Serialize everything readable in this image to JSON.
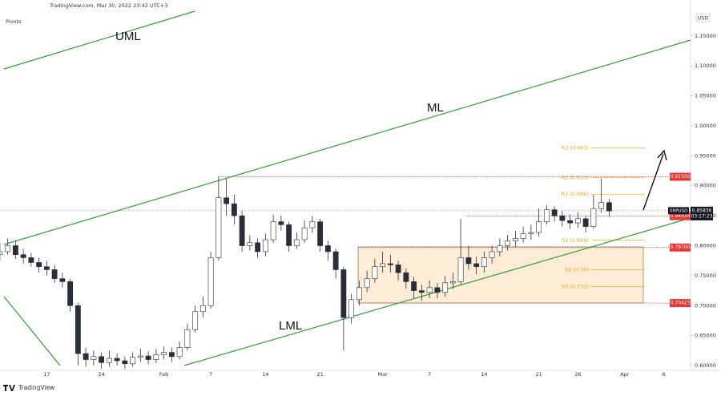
{
  "chart_data": {
    "type": "candlestick",
    "header": "TradingView.com, Mar 30, 2022 23:42 UTC+3",
    "indicator": "Pivots",
    "currency": "USD",
    "symbol": "XRPUSD",
    "countdown": "03:17:23",
    "logo": "TradingView",
    "annotations": [
      "UML",
      "ML",
      "LML"
    ],
    "categories": [
      null,
      null,
      null,
      null,
      null,
      null,
      "17",
      null,
      null,
      null,
      null,
      null,
      null,
      "24",
      null,
      null,
      null,
      null,
      null,
      null,
      null,
      "Feb",
      null,
      null,
      null,
      null,
      null,
      "7",
      null,
      null,
      null,
      null,
      null,
      null,
      "14",
      null,
      null,
      null,
      null,
      null,
      null,
      "21",
      null,
      null,
      null,
      null,
      null,
      null,
      null,
      "Mar",
      null,
      null,
      null,
      null,
      null,
      "7",
      null,
      null,
      null,
      null,
      null,
      null,
      "14",
      null,
      null,
      null,
      null,
      null,
      null,
      "21",
      null,
      null,
      null,
      null,
      "26",
      null,
      null,
      null,
      null,
      null,
      "Apr",
      null,
      null,
      null,
      null,
      "6",
      null,
      null
    ],
    "open": [
      0.785,
      0.79,
      0.8,
      0.785,
      0.78,
      0.772,
      0.765,
      0.76,
      0.745,
      0.74,
      0.7,
      0.62,
      0.61,
      0.615,
      0.605,
      0.612,
      0.608,
      0.603,
      0.614,
      0.616,
      0.61,
      0.618,
      0.622,
      0.615,
      0.63,
      0.66,
      0.69,
      0.7,
      0.78,
      0.88,
      0.87,
      0.85,
      0.8,
      0.805,
      0.79,
      0.81,
      0.84,
      0.835,
      0.8,
      0.81,
      0.83,
      0.84,
      0.8,
      0.79,
      0.76,
      0.68,
      0.71,
      0.73,
      0.745,
      0.765,
      0.77,
      0.768,
      0.755,
      0.74,
      0.725,
      0.722,
      0.73,
      0.722,
      0.738,
      0.74,
      0.78,
      0.77,
      0.765,
      0.78,
      0.79,
      0.8,
      0.808,
      0.812,
      0.82,
      0.822,
      0.84,
      0.86,
      0.85,
      0.842,
      0.838,
      0.845,
      0.832,
      0.862,
      0.872,
      null,
      null,
      null,
      null,
      null,
      null,
      null,
      null,
      null
    ],
    "high": [
      0.805,
      0.812,
      0.808,
      0.795,
      0.788,
      0.78,
      0.775,
      0.768,
      0.755,
      0.745,
      0.705,
      0.63,
      0.625,
      0.622,
      0.625,
      0.62,
      0.615,
      0.622,
      0.628,
      0.624,
      0.628,
      0.632,
      0.63,
      0.64,
      0.67,
      0.7,
      0.715,
      0.79,
      0.915,
      0.912,
      0.885,
      0.858,
      0.818,
      0.812,
      0.82,
      0.852,
      0.85,
      0.84,
      0.822,
      0.842,
      0.85,
      0.845,
      0.808,
      0.795,
      0.765,
      0.72,
      0.742,
      0.758,
      0.778,
      0.79,
      0.785,
      0.775,
      0.762,
      0.748,
      0.735,
      0.742,
      0.738,
      0.75,
      0.755,
      0.845,
      0.8,
      0.782,
      0.79,
      0.8,
      0.812,
      0.818,
      0.825,
      0.832,
      0.835,
      0.862,
      0.868,
      0.866,
      0.858,
      0.852,
      0.856,
      0.85,
      0.885,
      0.912,
      0.878,
      null,
      null,
      null,
      null,
      null,
      null,
      null,
      null,
      null
    ],
    "low": [
      0.775,
      0.785,
      0.778,
      0.77,
      0.765,
      0.755,
      0.75,
      0.738,
      0.73,
      0.69,
      0.6,
      0.598,
      0.6,
      0.595,
      0.598,
      0.6,
      0.595,
      0.598,
      0.606,
      0.602,
      0.604,
      0.61,
      0.606,
      0.61,
      0.625,
      0.655,
      0.68,
      0.695,
      0.775,
      0.85,
      0.835,
      0.79,
      0.792,
      0.78,
      0.782,
      0.805,
      0.825,
      0.79,
      0.795,
      0.805,
      0.822,
      0.79,
      0.775,
      0.745,
      0.625,
      0.67,
      0.7,
      0.722,
      0.738,
      0.755,
      0.755,
      0.742,
      0.728,
      0.712,
      0.708,
      0.712,
      0.712,
      0.715,
      0.728,
      0.735,
      0.76,
      0.752,
      0.755,
      0.77,
      0.782,
      0.792,
      0.798,
      0.805,
      0.81,
      0.815,
      0.835,
      0.84,
      0.832,
      0.828,
      0.83,
      0.822,
      0.828,
      0.855,
      0.848,
      null,
      null,
      null,
      null,
      null,
      null,
      null,
      null,
      null
    ],
    "close": [
      0.79,
      0.8,
      0.785,
      0.78,
      0.772,
      0.765,
      0.76,
      0.745,
      0.74,
      0.7,
      0.62,
      0.61,
      0.615,
      0.605,
      0.612,
      0.608,
      0.603,
      0.614,
      0.616,
      0.61,
      0.618,
      0.622,
      0.615,
      0.63,
      0.66,
      0.69,
      0.7,
      0.78,
      0.88,
      0.87,
      0.85,
      0.8,
      0.805,
      0.79,
      0.81,
      0.84,
      0.835,
      0.8,
      0.81,
      0.83,
      0.84,
      0.8,
      0.79,
      0.76,
      0.68,
      0.71,
      0.73,
      0.745,
      0.765,
      0.77,
      0.768,
      0.755,
      0.74,
      0.725,
      0.722,
      0.73,
      0.722,
      0.738,
      0.74,
      0.78,
      0.77,
      0.765,
      0.78,
      0.79,
      0.8,
      0.808,
      0.812,
      0.82,
      0.822,
      0.84,
      0.86,
      0.85,
      0.842,
      0.838,
      0.845,
      0.832,
      0.862,
      0.872,
      0.858,
      null,
      null,
      null,
      null,
      null,
      null,
      null,
      null,
      null
    ],
    "up_color": "#ffffff",
    "down_color": "#2a2e39",
    "wick_color": "#2a2e39",
    "ylim": [
      0.592,
      1.21
    ],
    "yticks": [
      {
        "value": 1.15,
        "label": "1.15000"
      },
      {
        "value": 1.1,
        "label": "1.10000"
      },
      {
        "value": 1.05,
        "label": "1.05000"
      },
      {
        "value": 1.0,
        "label": "1.00000"
      },
      {
        "value": 0.95,
        "label": "0.95000"
      },
      {
        "value": 0.9,
        "label": "0.90000"
      },
      {
        "value": 0.85,
        "label": "0.85000"
      },
      {
        "value": 0.8,
        "label": "0.80000"
      },
      {
        "value": 0.75,
        "label": "0.75000"
      },
      {
        "value": 0.7,
        "label": "0.70000"
      },
      {
        "value": 0.65,
        "label": "0.65000"
      },
      {
        "value": 0.6,
        "label": "0.60000"
      }
    ],
    "grid": false,
    "levels": [
      {
        "value": 0.91506,
        "label": "0.91506"
      },
      {
        "value": 0.84934,
        "label": "0.84934"
      },
      {
        "value": 0.797,
        "label": "0.79700"
      },
      {
        "value": 0.70423,
        "label": "0.70423"
      }
    ],
    "level_color": "#e53935",
    "last_price": {
      "value": 0.85836,
      "label": "0.85836"
    },
    "pivots": [
      {
        "name": "R3 (0.963)",
        "value": 0.963
      },
      {
        "name": "R2 (0.914)",
        "value": 0.914
      },
      {
        "name": "R1 (0.886)",
        "value": 0.886
      },
      {
        "name": "S1 (0.809)",
        "value": 0.809
      },
      {
        "name": "S2 (0.76)",
        "value": 0.76
      },
      {
        "name": "S3 (0.732)",
        "value": 0.732
      }
    ],
    "pivot_color": "#f5a623"
  }
}
